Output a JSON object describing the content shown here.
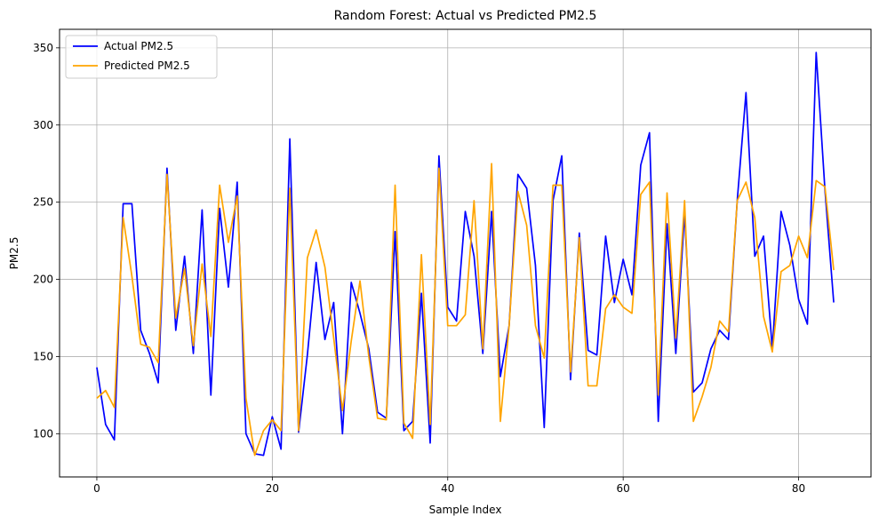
{
  "chart_data": {
    "type": "line",
    "title": "Random Forest: Actual vs Predicted PM2.5",
    "xlabel": "Sample Index",
    "ylabel": "PM2.5",
    "xlim": [
      -4.25,
      88.25
    ],
    "ylim": [
      72,
      362
    ],
    "x_ticks": [
      0,
      20,
      40,
      60,
      80
    ],
    "y_ticks": [
      100,
      150,
      200,
      250,
      300,
      350
    ],
    "grid": true,
    "legend_position": "top-left",
    "series": [
      {
        "name": "Actual PM2.5",
        "color": "#0000ff",
        "values": [
          143,
          106,
          96,
          249,
          249,
          167,
          152,
          133,
          272,
          167,
          215,
          152,
          245,
          125,
          246,
          195,
          263,
          100,
          87,
          86,
          111,
          90,
          291,
          101,
          151,
          211,
          161,
          185,
          100,
          198,
          178,
          155,
          114,
          110,
          231,
          102,
          108,
          191,
          94,
          280,
          182,
          173,
          244,
          215,
          152,
          244,
          137,
          170,
          268,
          259,
          209,
          104,
          251,
          280,
          135,
          230,
          154,
          151,
          228,
          185,
          213,
          190,
          274,
          295,
          108,
          236,
          152,
          243,
          127,
          133,
          155,
          167,
          161,
          251,
          321,
          215,
          228,
          155,
          244,
          222,
          187,
          171,
          347,
          258,
          185
        ]
      },
      {
        "name": "Predicted PM2.5",
        "color": "#ffa500",
        "values": [
          123,
          128,
          117,
          240,
          202,
          158,
          156,
          146,
          268,
          175,
          207,
          157,
          210,
          163,
          261,
          224,
          254,
          123,
          86,
          102,
          109,
          102,
          259,
          102,
          214,
          232,
          208,
          162,
          115,
          160,
          199,
          150,
          110,
          109,
          261,
          107,
          97,
          216,
          106,
          272,
          170,
          170,
          177,
          251,
          155,
          275,
          108,
          170,
          257,
          235,
          170,
          149,
          261,
          261,
          140,
          227,
          131,
          131,
          181,
          190,
          182,
          178,
          255,
          263,
          125,
          256,
          162,
          251,
          108,
          124,
          143,
          173,
          166,
          251,
          263,
          240,
          176,
          153,
          205,
          209,
          228,
          214,
          264,
          260,
          206
        ]
      }
    ]
  }
}
